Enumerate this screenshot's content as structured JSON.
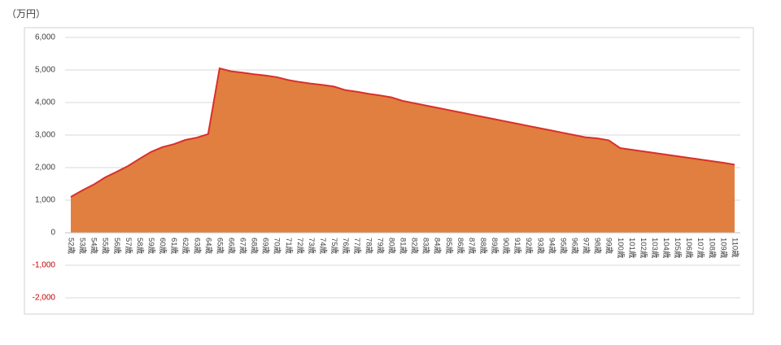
{
  "chart_data": {
    "type": "area",
    "y_label": "（万円）",
    "categories": [
      "52歳",
      "53歳",
      "54歳",
      "55歳",
      "56歳",
      "57歳",
      "58歳",
      "59歳",
      "60歳",
      "61歳",
      "62歳",
      "63歳",
      "64歳",
      "65歳",
      "66歳",
      "67歳",
      "68歳",
      "69歳",
      "70歳",
      "71歳",
      "72歳",
      "73歳",
      "74歳",
      "75歳",
      "76歳",
      "77歳",
      "78歳",
      "79歳",
      "80歳",
      "81歳",
      "82歳",
      "83歳",
      "84歳",
      "85歳",
      "86歳",
      "87歳",
      "88歳",
      "89歳",
      "90歳",
      "91歳",
      "92歳",
      "93歳",
      "94歳",
      "95歳",
      "96歳",
      "97歳",
      "98歳",
      "99歳",
      "100歳",
      "101歳",
      "102歳",
      "103歳",
      "104歳",
      "105歳",
      "106歳",
      "107歳",
      "108歳",
      "109歳",
      "110歳"
    ],
    "values": [
      1100,
      1300,
      1480,
      1700,
      1870,
      2050,
      2270,
      2480,
      2630,
      2720,
      2850,
      2920,
      3030,
      5050,
      4960,
      4920,
      4870,
      4830,
      4780,
      4690,
      4630,
      4580,
      4540,
      4490,
      4380,
      4330,
      4270,
      4220,
      4160,
      4050,
      3980,
      3910,
      3840,
      3770,
      3700,
      3630,
      3560,
      3490,
      3420,
      3350,
      3280,
      3210,
      3140,
      3070,
      3000,
      2930,
      2900,
      2840,
      2600,
      2550,
      2500,
      2450,
      2400,
      2350,
      2300,
      2250,
      2200,
      2150,
      2090
    ],
    "color": "#e07f3f",
    "line_color": "#d9302b",
    "ylim": [
      -2000,
      6000
    ],
    "yticks": [
      {
        "value": -2000,
        "label": "-2,000"
      },
      {
        "value": -1000,
        "label": "-1,000"
      },
      0,
      {
        "value": 1000,
        "label": "1,000"
      },
      {
        "value": 2000,
        "label": "2,000"
      },
      {
        "value": 3000,
        "label": "3,000"
      },
      {
        "value": 4000,
        "label": "4,000"
      },
      {
        "value": 5000,
        "label": "5,000"
      },
      {
        "value": 6000,
        "label": "6,000"
      }
    ],
    "negative_tick_color": "#c00000",
    "grid": true
  }
}
